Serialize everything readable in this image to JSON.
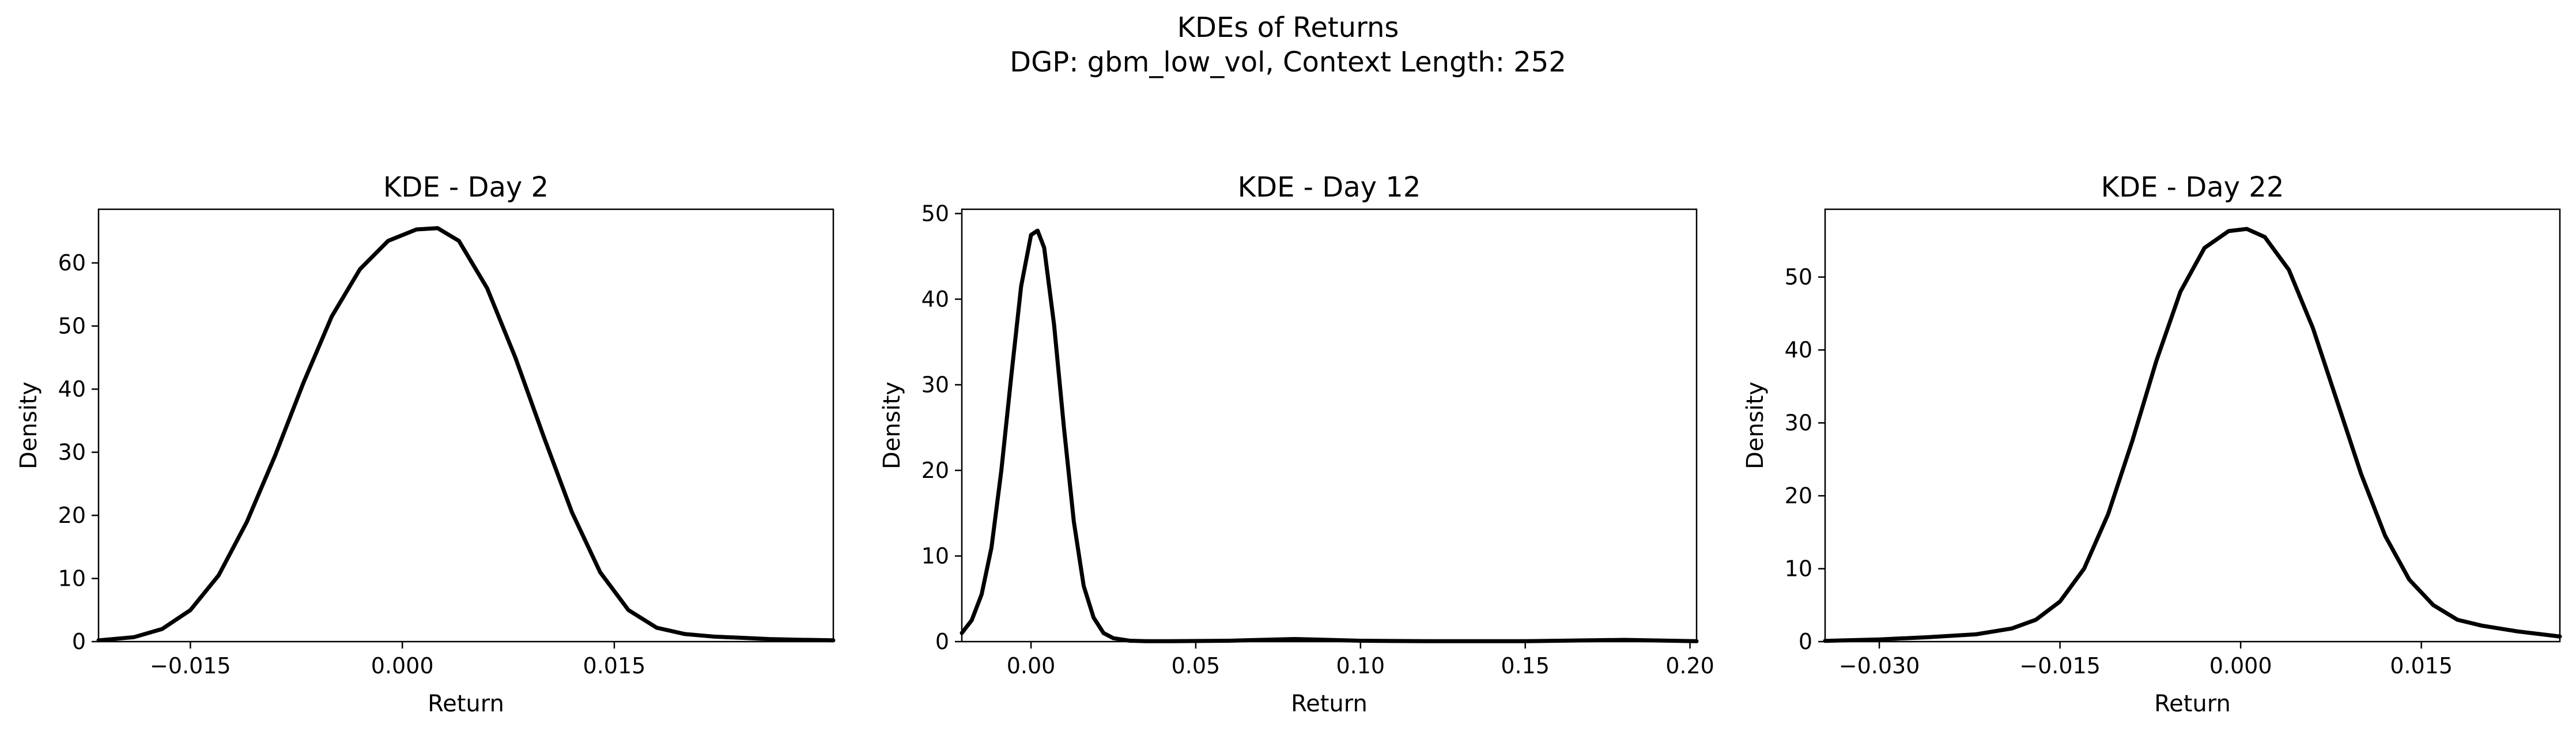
{
  "figure": {
    "title_line1": "KDEs of Returns",
    "title_line2": "DGP: gbm_low_vol, Context Length: 252"
  },
  "chart_data": [
    {
      "type": "line",
      "title": "KDE - Day 2",
      "xlabel": "Return",
      "ylabel": "Density",
      "xlim": [
        -0.0215,
        0.0305
      ],
      "ylim": [
        0,
        68.5
      ],
      "xticks": [
        -0.015,
        0.0,
        0.015
      ],
      "xtick_labels": [
        "−0.015",
        "0.000",
        "0.015"
      ],
      "yticks": [
        0,
        10,
        20,
        30,
        40,
        50,
        60
      ],
      "ytick_labels": [
        "0",
        "10",
        "20",
        "30",
        "40",
        "50",
        "60"
      ],
      "grid": false,
      "color": "#000000",
      "x": [
        -0.0215,
        -0.019,
        -0.017,
        -0.015,
        -0.013,
        -0.011,
        -0.009,
        -0.007,
        -0.005,
        -0.003,
        -0.001,
        0.001,
        0.0025,
        0.004,
        0.006,
        0.008,
        0.01,
        0.012,
        0.014,
        0.016,
        0.018,
        0.02,
        0.022,
        0.024,
        0.026,
        0.028,
        0.0305
      ],
      "y": [
        0.2,
        0.7,
        2.0,
        5.0,
        10.5,
        19.0,
        29.5,
        41.0,
        51.5,
        59.0,
        63.5,
        65.3,
        65.5,
        63.5,
        56.0,
        45.0,
        32.5,
        20.5,
        11.0,
        5.0,
        2.2,
        1.2,
        0.8,
        0.6,
        0.4,
        0.3,
        0.2
      ]
    },
    {
      "type": "line",
      "title": "KDE - Day 12",
      "xlabel": "Return",
      "ylabel": "Density",
      "xlim": [
        -0.021,
        0.202
      ],
      "ylim": [
        0,
        50.5
      ],
      "xticks": [
        0.0,
        0.05,
        0.1,
        0.15,
        0.2
      ],
      "xtick_labels": [
        "0.00",
        "0.05",
        "0.10",
        "0.15",
        "0.20"
      ],
      "yticks": [
        0,
        10,
        20,
        30,
        40,
        50
      ],
      "ytick_labels": [
        "0",
        "10",
        "20",
        "30",
        "40",
        "50"
      ],
      "grid": false,
      "color": "#000000",
      "x": [
        -0.021,
        -0.018,
        -0.015,
        -0.012,
        -0.009,
        -0.006,
        -0.003,
        0.0,
        0.002,
        0.004,
        0.007,
        0.01,
        0.013,
        0.016,
        0.019,
        0.022,
        0.025,
        0.03,
        0.035,
        0.04,
        0.06,
        0.08,
        0.1,
        0.12,
        0.15,
        0.18,
        0.202
      ],
      "y": [
        1.0,
        2.5,
        5.5,
        11.0,
        20.0,
        31.0,
        41.5,
        47.5,
        48.0,
        46.0,
        37.0,
        25.0,
        14.0,
        6.5,
        2.8,
        1.0,
        0.4,
        0.1,
        0.05,
        0.05,
        0.1,
        0.3,
        0.1,
        0.05,
        0.05,
        0.2,
        0.05
      ]
    },
    {
      "type": "line",
      "title": "KDE - Day 22",
      "xlabel": "Return",
      "ylabel": "Density",
      "xlim": [
        -0.0345,
        0.0265
      ],
      "ylim": [
        0,
        59.3
      ],
      "xticks": [
        -0.03,
        -0.015,
        0.0,
        0.015
      ],
      "xtick_labels": [
        "−0.030",
        "−0.015",
        "0.000",
        "0.015"
      ],
      "yticks": [
        0,
        10,
        20,
        30,
        40,
        50
      ],
      "ytick_labels": [
        "0",
        "10",
        "20",
        "30",
        "40",
        "50"
      ],
      "grid": false,
      "color": "#000000",
      "x": [
        -0.0345,
        -0.03,
        -0.026,
        -0.022,
        -0.019,
        -0.017,
        -0.015,
        -0.013,
        -0.011,
        -0.009,
        -0.007,
        -0.005,
        -0.003,
        -0.001,
        0.0005,
        0.002,
        0.004,
        0.006,
        0.008,
        0.01,
        0.012,
        0.014,
        0.016,
        0.018,
        0.02,
        0.023,
        0.0265
      ],
      "y": [
        0.1,
        0.3,
        0.6,
        1.0,
        1.8,
        3.0,
        5.5,
        10.0,
        17.5,
        27.5,
        38.5,
        48.0,
        54.0,
        56.3,
        56.6,
        55.5,
        51.0,
        43.0,
        33.0,
        23.0,
        14.5,
        8.5,
        5.0,
        3.0,
        2.2,
        1.4,
        0.7
      ]
    }
  ]
}
